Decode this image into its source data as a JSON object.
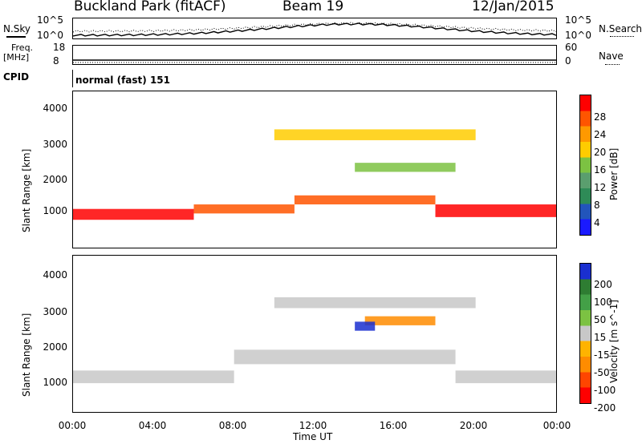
{
  "header": {
    "site": "Buckland Park (fitACF)",
    "beam": "Beam 19",
    "date": "12/Jan/2015"
  },
  "noise_panel": {
    "left_label": "N.Sky",
    "right_label": "N.Search",
    "ticks_left": [
      "10^5",
      "10^0"
    ],
    "ticks_right": [
      "10^5",
      "10^0"
    ]
  },
  "freq_panel": {
    "left_label_1": "Freq.",
    "left_label_2": "[MHz]",
    "right_label": "Nave",
    "ticks_left": [
      "18",
      "8"
    ],
    "ticks_right": [
      "60",
      "0"
    ]
  },
  "cpid_panel": {
    "label": "CPID",
    "text": "normal (fast) 151"
  },
  "colors": {
    "power": [
      "#1a1aff",
      "#2255bb",
      "#2e8b57",
      "#5a9e6e",
      "#7cc242",
      "#ffcc00",
      "#ff9900",
      "#ff5500",
      "#ff0000"
    ],
    "velocity": [
      "#1a2fd0",
      "#2e7d32",
      "#43a047",
      "#7cc242",
      "#c8c8c8",
      "#ffb300",
      "#ff8c00",
      "#ff4500",
      "#ff0000"
    ]
  },
  "chart_data": [
    {
      "type": "heatmap",
      "name": "Power",
      "ylabel": "Slant Range [km]",
      "xlabel": "Time UT",
      "x_ticks": [
        "00:00",
        "04:00",
        "08:00",
        "12:00",
        "16:00",
        "20:00",
        "00:00"
      ],
      "y_ticks": [
        "1000",
        "2000",
        "3000",
        "4000"
      ],
      "ylim": [
        180,
        4500
      ],
      "xlim_hours": [
        0,
        24
      ],
      "colorbar_label": "Power [dB]",
      "colorbar_ticks": [
        "4",
        "8",
        "12",
        "16",
        "20",
        "24",
        "28"
      ],
      "bands": [
        {
          "start_h": 0,
          "end_h": 6,
          "center_km": 1100,
          "width_km": 300,
          "level": 8
        },
        {
          "start_h": 6,
          "end_h": 11,
          "center_km": 1250,
          "width_km": 250,
          "level": 7
        },
        {
          "start_h": 11,
          "end_h": 18,
          "center_km": 1500,
          "width_km": 250,
          "level": 7
        },
        {
          "start_h": 18,
          "end_h": 24,
          "center_km": 1200,
          "width_km": 350,
          "level": 8
        },
        {
          "start_h": 10,
          "end_h": 20,
          "center_km": 3300,
          "width_km": 300,
          "level": 5
        },
        {
          "start_h": 14,
          "end_h": 19,
          "center_km": 2400,
          "width_km": 250,
          "level": 4
        }
      ]
    },
    {
      "type": "heatmap",
      "name": "Velocity",
      "ylabel": "Slant Range [km]",
      "xlabel": "Time UT",
      "x_ticks": [
        "00:00",
        "04:00",
        "08:00",
        "12:00",
        "16:00",
        "20:00",
        "00:00"
      ],
      "y_ticks": [
        "1000",
        "2000",
        "3000",
        "4000"
      ],
      "ylim": [
        180,
        4500
      ],
      "xlim_hours": [
        0,
        24
      ],
      "colorbar_label": "Velocity [m s^-1]",
      "colorbar_ticks": [
        "200",
        "100",
        "50",
        "15",
        "-15",
        "-50",
        "-100",
        "-200"
      ],
      "bands": [
        {
          "start_h": 0,
          "end_h": 8,
          "center_km": 1150,
          "width_km": 350,
          "level": 4
        },
        {
          "start_h": 8,
          "end_h": 19,
          "center_km": 1700,
          "width_km": 400,
          "level": 4
        },
        {
          "start_h": 19,
          "end_h": 24,
          "center_km": 1150,
          "width_km": 350,
          "level": 4
        },
        {
          "start_h": 10,
          "end_h": 20,
          "center_km": 3200,
          "width_km": 300,
          "level": 4
        },
        {
          "start_h": 14.5,
          "end_h": 18,
          "center_km": 2700,
          "width_km": 250,
          "level": 6
        },
        {
          "start_h": 14,
          "end_h": 15,
          "center_km": 2550,
          "width_km": 250,
          "level": 0
        }
      ]
    }
  ]
}
